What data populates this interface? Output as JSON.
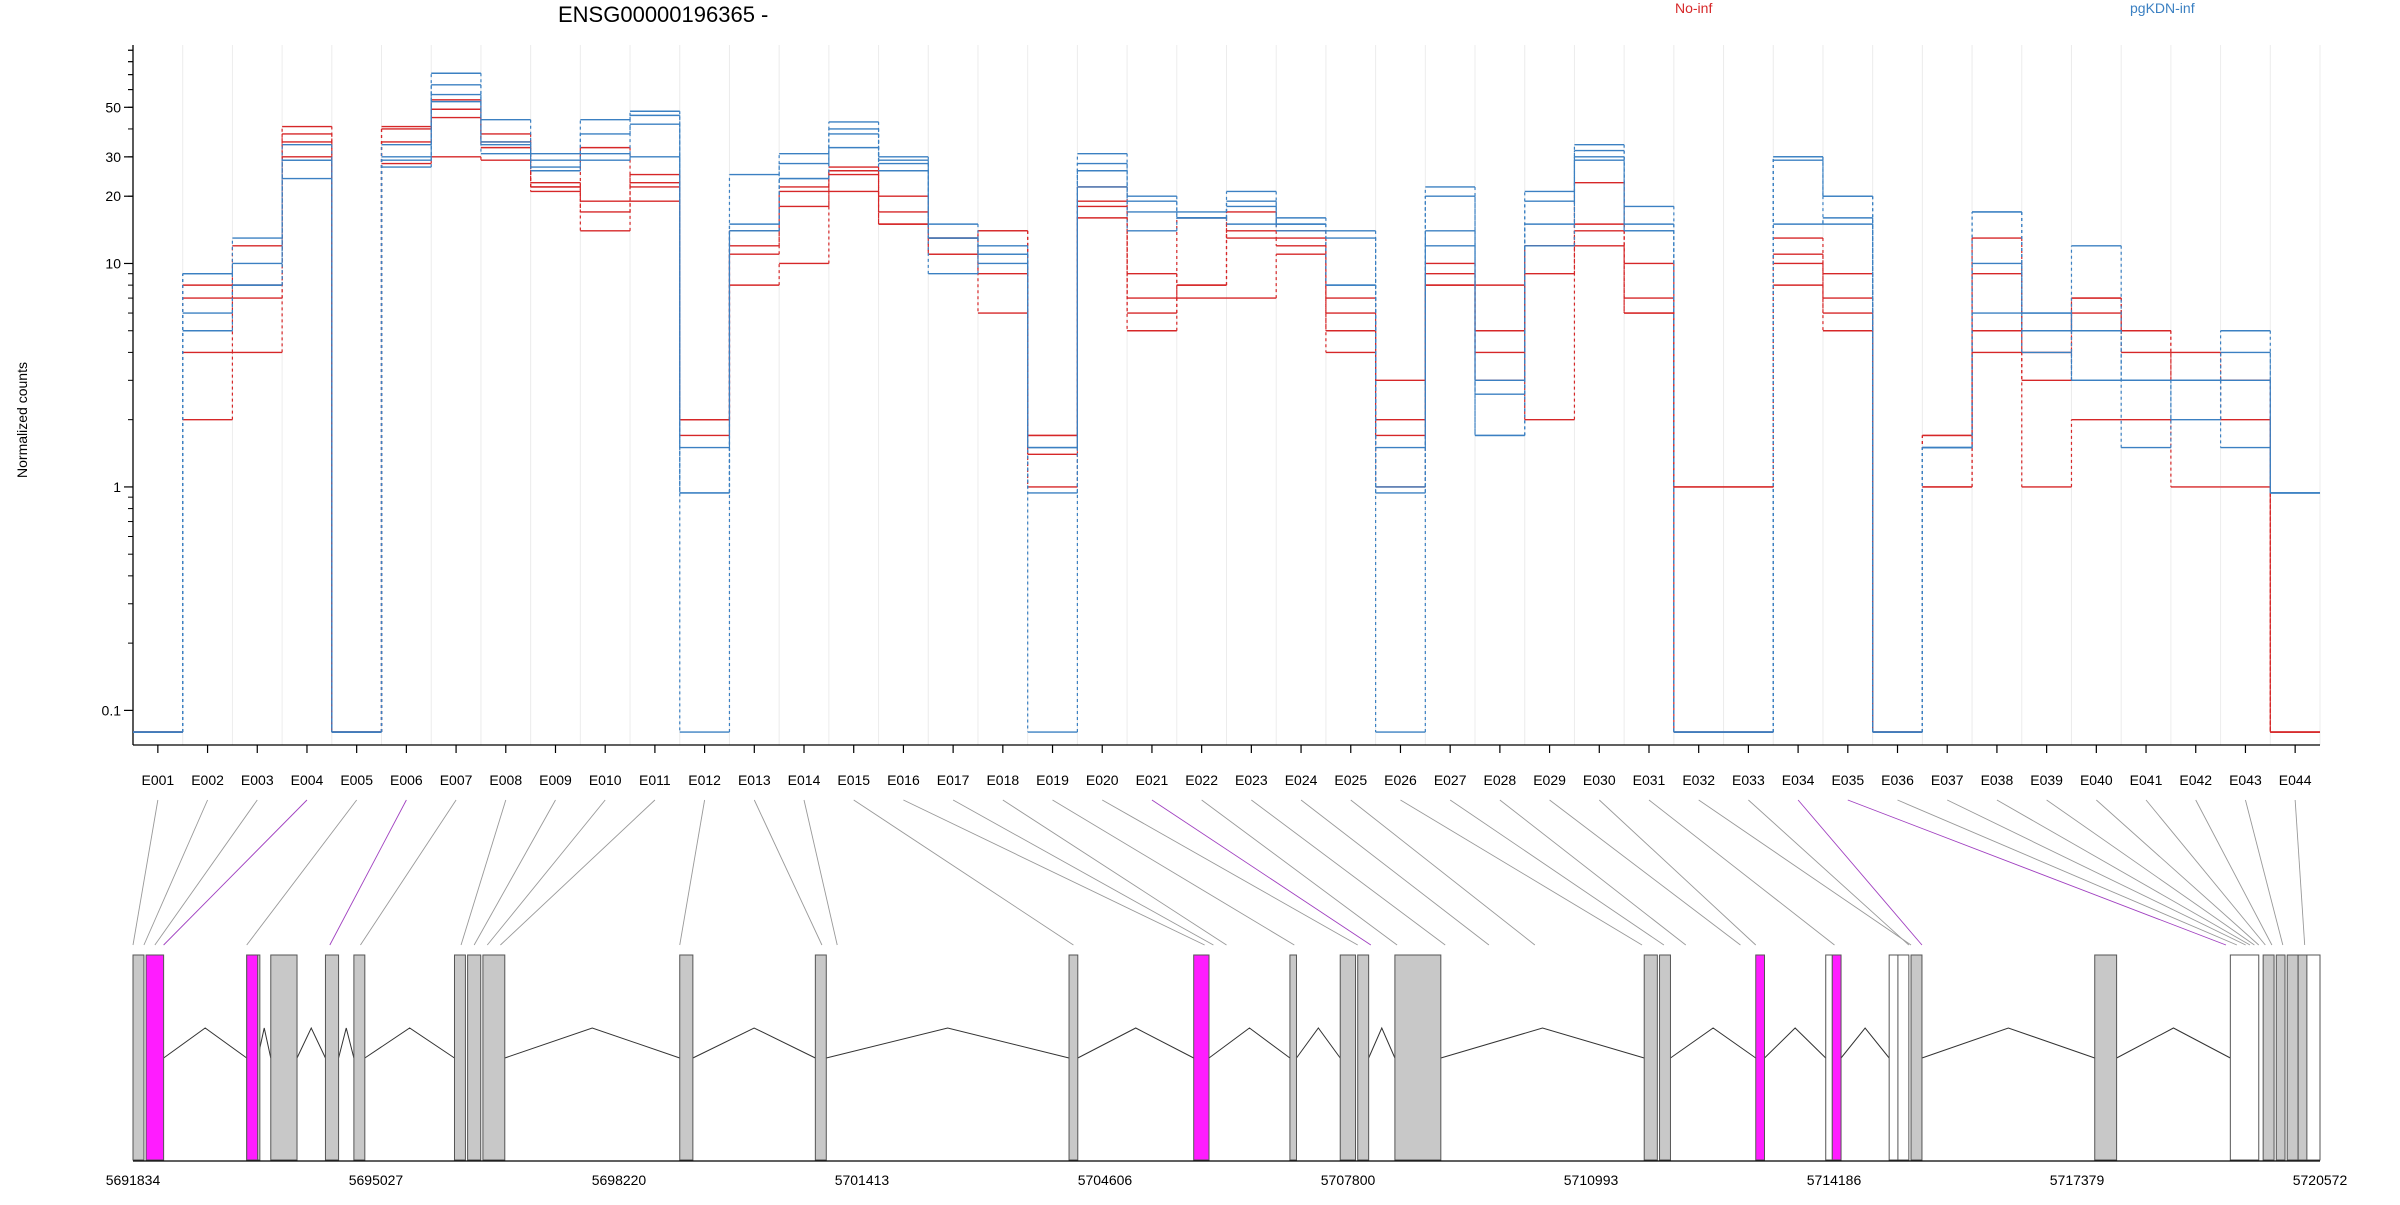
{
  "chart_data": {
    "type": "line",
    "title": "ENSG00000196365 -",
    "ylabel": "Normalized counts",
    "yscale": "log",
    "ylim": [
      0.07,
      95
    ],
    "yticks": [
      0.1,
      1,
      10,
      20,
      30,
      50
    ],
    "ytick_labels": [
      "0.1",
      "1",
      "10",
      "20",
      "30",
      "50"
    ],
    "categories": [
      "E001",
      "E002",
      "E003",
      "E004",
      "E005",
      "E006",
      "E007",
      "E008",
      "E009",
      "E010",
      "E011",
      "E012",
      "E013",
      "E014",
      "E015",
      "E016",
      "E017",
      "E018",
      "E019",
      "E020",
      "E021",
      "E022",
      "E023",
      "E024",
      "E025",
      "E026",
      "E027",
      "E028",
      "E029",
      "E030",
      "E031",
      "E032",
      "E033",
      "E034",
      "E035",
      "E036",
      "E037",
      "E038",
      "E039",
      "E040",
      "E041",
      "E042",
      "E043",
      "E044"
    ],
    "legend": [
      {
        "name": "No-inf",
        "color": "#d62728"
      },
      {
        "name": "pgKDN-inf",
        "color": "#3b80c2"
      }
    ],
    "series": [
      {
        "group": "No-inf",
        "values": [
          0.08,
          2,
          4,
          30,
          0.08,
          28,
          30,
          29,
          21,
          14,
          19,
          2,
          8,
          10,
          21,
          15,
          11,
          6,
          1,
          16,
          5,
          7,
          7,
          11,
          4,
          1,
          8,
          8,
          2,
          12,
          6,
          1,
          1,
          8,
          5,
          0.08,
          1,
          4,
          1,
          2,
          2,
          1,
          1,
          0.08
        ]
      },
      {
        "group": "No-inf",
        "values": [
          0.08,
          8,
          8,
          38,
          0.08,
          40,
          45,
          33,
          22,
          17,
          23,
          1.7,
          11,
          18,
          25,
          17,
          13,
          9,
          1.7,
          18,
          6,
          16,
          13,
          12,
          5,
          1.7,
          9,
          3,
          9,
          14,
          10,
          1.0,
          1.0,
          11,
          7,
          0.08,
          1.7,
          5,
          4,
          7,
          5,
          3,
          3,
          0.08
        ]
      },
      {
        "group": "No-inf",
        "values": [
          0.08,
          4,
          12,
          41,
          0.08,
          41,
          49,
          38,
          23,
          19,
          25,
          2,
          12,
          21,
          27,
          20,
          11,
          14,
          1.7,
          22,
          9,
          8,
          17,
          14,
          7,
          2,
          10,
          5,
          12,
          15,
          7,
          0.08,
          0.08,
          13,
          9,
          0.08,
          1.7,
          9,
          5,
          7,
          5,
          4,
          3,
          0.08
        ]
      },
      {
        "group": "No-inf",
        "values": [
          0.08,
          7,
          7,
          35,
          0.08,
          35,
          54,
          35,
          22,
          33,
          22,
          2,
          14,
          22,
          26,
          15,
          13,
          14,
          1.4,
          19,
          7,
          8,
          14,
          13,
          6,
          3,
          8,
          4,
          12,
          23,
          6,
          0.08,
          0.08,
          10,
          6,
          0.08,
          1.0,
          13,
          3,
          6,
          4,
          3,
          2,
          0.08
        ]
      },
      {
        "group": "pgKDN-inf",
        "values": [
          0.08,
          9,
          13,
          24,
          0.08,
          29,
          63,
          44,
          31,
          44,
          46,
          0.08,
          14,
          24,
          38,
          29,
          15,
          11,
          1.5,
          31,
          14,
          16,
          21,
          15,
          14,
          1,
          22,
          3,
          15,
          32,
          18,
          0.08,
          0.08,
          29,
          15,
          0.08,
          1.5,
          10,
          5,
          12,
          3,
          3,
          4,
          0.94
        ]
      },
      {
        "group": "pgKDN-inf",
        "values": [
          0.08,
          5,
          8,
          29,
          0.08,
          27,
          71,
          34,
          27,
          29,
          42,
          1.5,
          14,
          24,
          40,
          28,
          13,
          10,
          0.08,
          26,
          17,
          16,
          18,
          14,
          13,
          0.08,
          20,
          2.6,
          12,
          34,
          14,
          0.08,
          0.08,
          15,
          16,
          0.08,
          1.5,
          17,
          6,
          5,
          1.5,
          3,
          1.5,
          0.94
        ]
      },
      {
        "group": "pgKDN-inf",
        "values": [
          0.08,
          6,
          10,
          34,
          0.08,
          34,
          57,
          31,
          29,
          38,
          48,
          0.94,
          15,
          31,
          43,
          26,
          13,
          11,
          1.5,
          28,
          19,
          17,
          19,
          15,
          8,
          1.5,
          14,
          1.7,
          19,
          30,
          15,
          0.08,
          0.08,
          30,
          20,
          0.08,
          1.5,
          17,
          6,
          3,
          3,
          3,
          5,
          0.94
        ]
      },
      {
        "group": "pgKDN-inf",
        "values": [
          0.08,
          9,
          8,
          29,
          0.08,
          30,
          53,
          35,
          26,
          31,
          30,
          0.94,
          25,
          28,
          33,
          30,
          9,
          12,
          0.94,
          22,
          20,
          16,
          15,
          16,
          8,
          0.94,
          12,
          1.7,
          21,
          29,
          14,
          0.08,
          0.08,
          30,
          20,
          0.08,
          1.5,
          6,
          4,
          3,
          3,
          2,
          3,
          0.94
        ]
      }
    ],
    "genomic_axis": {
      "ticks": [
        5691834,
        5695027,
        5698220,
        5701413,
        5704606,
        5707800,
        5710993,
        5714186,
        5717379,
        5720572
      ],
      "tick_labels": [
        "5691834",
        "5695027",
        "5698220",
        "5701413",
        "5704606",
        "5707800",
        "5710993",
        "5714186",
        "5717379",
        "5720572"
      ],
      "colors": {
        "exon": "#c8c8c8",
        "highlight": "#ff1cff",
        "untranslated": "#ffffff"
      }
    }
  }
}
